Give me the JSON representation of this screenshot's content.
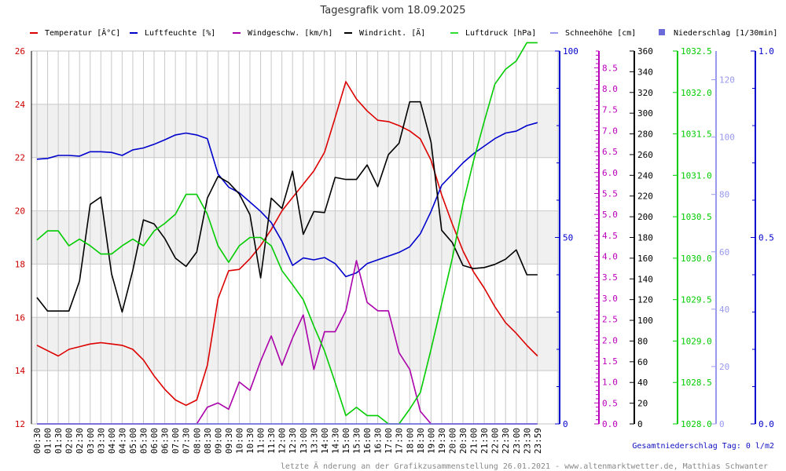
{
  "chart_data": {
    "type": "line",
    "title": "Tagesgrafik vom 18.09.2025",
    "x": [
      "00:30",
      "01:00",
      "01:30",
      "02:00",
      "02:30",
      "03:00",
      "03:30",
      "04:00",
      "04:30",
      "05:00",
      "05:30",
      "06:00",
      "06:30",
      "07:00",
      "07:30",
      "08:00",
      "08:30",
      "09:00",
      "09:30",
      "10:00",
      "10:30",
      "11:00",
      "11:30",
      "12:00",
      "12:30",
      "13:00",
      "13:30",
      "14:00",
      "14:30",
      "15:00",
      "15:30",
      "16:00",
      "16:30",
      "17:00",
      "17:30",
      "18:00",
      "18:30",
      "19:00",
      "19:30",
      "20:00",
      "20:30",
      "21:00",
      "21:30",
      "22:00",
      "22:30",
      "23:00",
      "23:30",
      "23:59"
    ],
    "grid": true,
    "legend_position": "top",
    "axes": [
      {
        "id": "temp",
        "side": "left",
        "color": "#cc0000",
        "ylim": [
          12,
          26
        ],
        "ticks": [
          "12",
          "14",
          "16",
          "18",
          "20",
          "22",
          "24",
          "26"
        ]
      },
      {
        "id": "hum",
        "side": "right",
        "color": "#0000cc",
        "ylim": [
          0,
          100
        ],
        "ticks": [
          "0",
          "50",
          "100"
        ]
      },
      {
        "id": "wind",
        "side": "right",
        "color": "#bb00bb",
        "ylim": [
          0,
          8.9
        ],
        "ticks": [
          "0.0",
          "0.5",
          "1.0",
          "1.5",
          "2.0",
          "2.5",
          "3.0",
          "3.5",
          "4.0",
          "4.5",
          "5.0",
          "5.5",
          "6.0",
          "6.5",
          "7.0",
          "7.5",
          "8.0",
          "8.5"
        ]
      },
      {
        "id": "dir",
        "side": "right",
        "color": "#000000",
        "ylim": [
          0,
          360
        ],
        "ticks": [
          "0",
          "20",
          "40",
          "60",
          "80",
          "100",
          "120",
          "140",
          "160",
          "180",
          "200",
          "220",
          "240",
          "260",
          "280",
          "300",
          "320",
          "340",
          "360"
        ]
      },
      {
        "id": "press",
        "side": "right",
        "color": "#00cc00",
        "ylim": [
          1028.0,
          1032.5
        ],
        "ticks": [
          "1028.0",
          "1028.5",
          "1029.0",
          "1029.5",
          "1030.0",
          "1030.5",
          "1031.0",
          "1031.5",
          "1032.0",
          "1032.5"
        ]
      },
      {
        "id": "snow",
        "side": "right",
        "color": "#9999ee",
        "ylim": [
          0,
          130
        ],
        "ticks": [
          "0",
          "20",
          "40",
          "60",
          "80",
          "100",
          "120"
        ]
      },
      {
        "id": "rain",
        "side": "right",
        "color": "#0000cc",
        "ylim": [
          0,
          1.0
        ],
        "ticks": [
          "0.0",
          "0.5",
          "1.0"
        ]
      }
    ],
    "series": [
      {
        "name": "Temperatur [Â°C]",
        "axis": "temp",
        "color": "#dd0000",
        "values": [
          14.95,
          14.75,
          14.55,
          14.8,
          14.9,
          15.0,
          15.05,
          15.0,
          14.95,
          14.8,
          14.4,
          13.8,
          13.3,
          12.9,
          12.7,
          12.9,
          14.2,
          16.7,
          17.75,
          17.8,
          18.2,
          18.7,
          19.3,
          20.0,
          20.5,
          21.0,
          21.5,
          22.2,
          23.5,
          24.85,
          24.2,
          23.75,
          23.4,
          23.35,
          23.2,
          23.0,
          22.7,
          21.9,
          20.6,
          19.5,
          18.5,
          17.7,
          17.1,
          16.4,
          15.8,
          15.4,
          14.95,
          14.55
        ]
      },
      {
        "name": "Luftfeuchte [%]",
        "axis": "hum",
        "color": "#0000cc",
        "values": [
          71.0,
          71.2,
          72.0,
          72.0,
          71.8,
          73.0,
          73.0,
          72.8,
          72.0,
          73.5,
          74.0,
          75.0,
          76.2,
          77.5,
          78.0,
          77.5,
          76.5,
          67.0,
          63.5,
          62.0,
          59.5,
          57.0,
          54.0,
          49.0,
          42.5,
          44.5,
          44.0,
          44.6,
          43.0,
          39.5,
          40.5,
          43.0,
          44.0,
          45.0,
          46.0,
          47.5,
          51.0,
          57.0,
          64.0,
          67.0,
          70.0,
          72.5,
          74.5,
          76.5,
          78.0,
          78.5,
          80.0,
          80.8
        ]
      },
      {
        "name": "Windgeschw. [km/h]",
        "axis": "wind",
        "color": "#aa00aa",
        "values": [
          0,
          0,
          0,
          0,
          0,
          0,
          0,
          0,
          0,
          0,
          0,
          0,
          0,
          0,
          0,
          0,
          0.4,
          0.5,
          0.35,
          1.0,
          0.8,
          1.5,
          2.1,
          1.4,
          2.05,
          2.6,
          1.3,
          2.2,
          2.2,
          2.7,
          3.9,
          2.9,
          2.7,
          2.7,
          1.7,
          1.3,
          0.3,
          0.0,
          0,
          0,
          0,
          0,
          0,
          0,
          0,
          0,
          0,
          0
        ]
      },
      {
        "name": "Windricht. [Ä]",
        "axis": "dir",
        "color": "#000000",
        "values": [
          122,
          109,
          109,
          109,
          138,
          212,
          219,
          145,
          108,
          148,
          197,
          193,
          179,
          160,
          152,
          166,
          218,
          239,
          233,
          222,
          202,
          141,
          218,
          208,
          244,
          183,
          205,
          204,
          238,
          236,
          236,
          250,
          229,
          260,
          271,
          311,
          311,
          272,
          187,
          175,
          153,
          150,
          151,
          154,
          159,
          168,
          144,
          144
        ]
      },
      {
        "name": "Luftdruck [hPa]",
        "axis": "press",
        "color": "#00cc00",
        "values": [
          1030.22,
          1030.33,
          1030.33,
          1030.15,
          1030.23,
          1030.15,
          1030.05,
          1030.05,
          1030.15,
          1030.23,
          1030.15,
          1030.33,
          1030.42,
          1030.53,
          1030.77,
          1030.77,
          1030.53,
          1030.15,
          1029.95,
          1030.15,
          1030.25,
          1030.25,
          1030.15,
          1029.85,
          1029.68,
          1029.5,
          1029.18,
          1028.88,
          1028.5,
          1028.1,
          1028.2,
          1028.1,
          1028.1,
          1028.0,
          1028.0,
          1028.18,
          1028.38,
          1028.9,
          1029.45,
          1030.0,
          1030.65,
          1031.18,
          1031.65,
          1032.1,
          1032.28,
          1032.38,
          1032.6,
          1032.6
        ]
      },
      {
        "name": "Schneehöhe [cm]",
        "axis": "snow",
        "color": "#9999ee",
        "values": [
          0,
          0,
          0,
          0,
          0,
          0,
          0,
          0,
          0,
          0,
          0,
          0,
          0,
          0,
          0,
          0,
          0,
          0,
          0,
          0,
          0,
          0,
          0,
          0,
          0,
          0,
          0,
          0,
          0,
          0,
          0,
          0,
          0,
          0,
          0,
          0,
          0,
          0,
          0,
          0,
          0,
          0,
          0,
          0,
          0,
          0,
          0,
          0
        ]
      },
      {
        "name": "Niederschlag [1/30min]",
        "axis": "rain",
        "color": "#6a6ad8",
        "values": [
          0,
          0,
          0,
          0,
          0,
          0,
          0,
          0,
          0,
          0,
          0,
          0,
          0,
          0,
          0,
          0,
          0,
          0,
          0,
          0,
          0,
          0,
          0,
          0,
          0,
          0,
          0,
          0,
          0,
          0,
          0,
          0,
          0,
          0,
          0,
          0,
          0,
          0,
          0,
          0,
          0,
          0,
          0,
          0,
          0,
          0,
          0,
          0
        ]
      }
    ],
    "legend": [
      {
        "label": "Temperatur [Â°C]",
        "color": "#dd0000",
        "marker": "line"
      },
      {
        "label": "Luftfeuchte [%]",
        "color": "#0000cc",
        "marker": "line"
      },
      {
        "label": "Windgeschw. [km/h]",
        "color": "#aa00aa",
        "marker": "line"
      },
      {
        "label": "Windricht. [Ä]",
        "color": "#000000",
        "marker": "line"
      },
      {
        "label": "Luftdruck [hPa]",
        "color": "#33dd33",
        "marker": "line"
      },
      {
        "label": "Schneehöhe [cm]",
        "color": "#9999ee",
        "marker": "line"
      },
      {
        "label": "Niederschlag [1/30min]",
        "color": "#6a6ad8",
        "marker": "square"
      }
    ],
    "total_label": "Gesamtniederschlag Tag: 0 l/m2",
    "footer": "letzte Ä nderung an der Grafikzusammenstellung 26.01.2021 - www.altenmarktwetter.de, Matthias Schwanter"
  }
}
